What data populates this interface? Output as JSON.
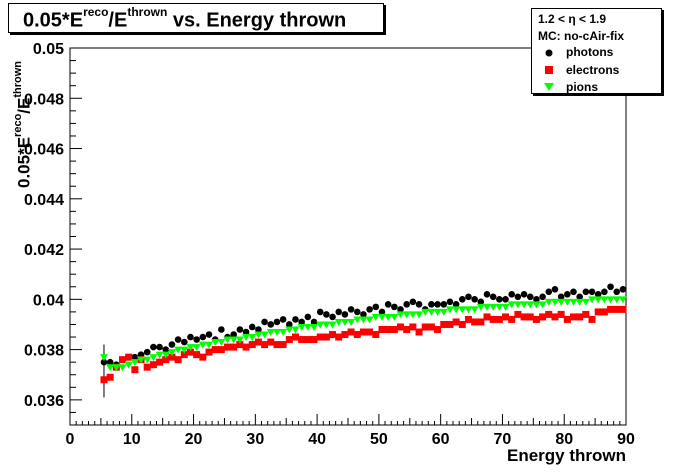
{
  "title": {
    "prefix": "0.05*E",
    "sup1": "reco",
    "mid": "/E",
    "sup2": "thrown",
    "suffix": " vs. Energy thrown"
  },
  "legend": {
    "header1": "1.2 < η < 1.9",
    "header2": "MC: no-cAir-fix",
    "entries": [
      {
        "label": "photons",
        "color": "#000000",
        "marker": "circle"
      },
      {
        "label": "electrons",
        "color": "#ff0000",
        "marker": "square"
      },
      {
        "label": "pions",
        "color": "#00ff00",
        "marker": "triangle-down"
      }
    ]
  },
  "chart_data": {
    "type": "scatter",
    "title": "0.05*E^reco/E^thrown vs. Energy thrown",
    "xlabel": "Energy thrown",
    "ylabel": "0.05*E^reco/E^thrown",
    "xlim": [
      0,
      90
    ],
    "ylim": [
      0.035,
      0.05
    ],
    "xticks": [
      0,
      10,
      20,
      30,
      40,
      50,
      60,
      70,
      80,
      90
    ],
    "yticks": [
      0.036,
      0.038,
      0.04,
      0.042,
      0.044,
      0.046,
      0.048,
      0.05
    ],
    "ytick_labels": [
      "0.036",
      "0.038",
      "0.04",
      "0.042",
      "0.044",
      "0.046",
      "0.048",
      "0.05"
    ],
    "grid": false,
    "legend_position": "top-right",
    "x": [
      5.5,
      6.5,
      7.5,
      8.5,
      9.5,
      10.5,
      11.5,
      12.5,
      13.5,
      14.5,
      15.5,
      16.5,
      17.5,
      18.5,
      19.5,
      20.5,
      21.5,
      22.5,
      23.5,
      24.5,
      25.5,
      26.5,
      27.5,
      28.5,
      29.5,
      30.5,
      31.5,
      32.5,
      33.5,
      34.5,
      35.5,
      36.5,
      37.5,
      38.5,
      39.5,
      40.5,
      41.5,
      42.5,
      43.5,
      44.5,
      45.5,
      46.5,
      47.5,
      48.5,
      49.5,
      50.5,
      51.5,
      52.5,
      53.5,
      54.5,
      55.5,
      56.5,
      57.5,
      58.5,
      59.5,
      60.5,
      61.5,
      62.5,
      63.5,
      64.5,
      65.5,
      66.5,
      67.5,
      68.5,
      69.5,
      70.5,
      71.5,
      72.5,
      73.5,
      74.5,
      75.5,
      76.5,
      77.5,
      78.5,
      79.5,
      80.5,
      81.5,
      82.5,
      83.5,
      84.5,
      85.5,
      86.5,
      87.5,
      88.5,
      89.5
    ],
    "series": [
      {
        "name": "photons",
        "marker": "circle",
        "color": "#000000",
        "values": [
          0.0375,
          0.0375,
          0.0374,
          0.0376,
          0.0377,
          0.0377,
          0.0378,
          0.0379,
          0.0381,
          0.0381,
          0.038,
          0.0382,
          0.0384,
          0.0383,
          0.0385,
          0.0384,
          0.0385,
          0.0386,
          0.0384,
          0.0388,
          0.0385,
          0.0386,
          0.0388,
          0.0387,
          0.0389,
          0.0388,
          0.0391,
          0.039,
          0.0391,
          0.0392,
          0.039,
          0.0392,
          0.0391,
          0.0393,
          0.0391,
          0.0395,
          0.0394,
          0.0393,
          0.0395,
          0.0394,
          0.0396,
          0.0395,
          0.0394,
          0.0396,
          0.0397,
          0.0395,
          0.0398,
          0.0397,
          0.0396,
          0.0398,
          0.0399,
          0.0398,
          0.0396,
          0.0398,
          0.0398,
          0.0398,
          0.0399,
          0.0398,
          0.04,
          0.0401,
          0.04,
          0.0399,
          0.0402,
          0.0401,
          0.04,
          0.04,
          0.0402,
          0.0401,
          0.0402,
          0.0401,
          0.04,
          0.0401,
          0.0403,
          0.0404,
          0.0401,
          0.0402,
          0.0403,
          0.0401,
          0.0403,
          0.0403,
          0.0402,
          0.0403,
          0.0405,
          0.0403,
          0.0404
        ]
      },
      {
        "name": "electrons",
        "marker": "square",
        "color": "#ff0000",
        "values": [
          0.0368,
          0.0369,
          0.0373,
          0.0376,
          0.0377,
          0.0372,
          0.0376,
          0.0373,
          0.0374,
          0.0375,
          0.0376,
          0.0377,
          0.0376,
          0.0378,
          0.0379,
          0.0378,
          0.0377,
          0.0379,
          0.038,
          0.038,
          0.0381,
          0.0381,
          0.0382,
          0.0381,
          0.0382,
          0.0383,
          0.0382,
          0.0383,
          0.0382,
          0.0382,
          0.0384,
          0.0385,
          0.0384,
          0.0384,
          0.0384,
          0.0385,
          0.0385,
          0.0386,
          0.0385,
          0.0386,
          0.0387,
          0.0386,
          0.0387,
          0.0387,
          0.0386,
          0.0388,
          0.0388,
          0.0388,
          0.0389,
          0.0388,
          0.0389,
          0.0387,
          0.0389,
          0.0389,
          0.0388,
          0.039,
          0.039,
          0.0391,
          0.039,
          0.0392,
          0.0391,
          0.0391,
          0.0393,
          0.0392,
          0.0392,
          0.0393,
          0.0392,
          0.0394,
          0.0393,
          0.0393,
          0.0392,
          0.0393,
          0.0394,
          0.0393,
          0.0394,
          0.0392,
          0.0393,
          0.0393,
          0.0394,
          0.0392,
          0.0395,
          0.0395,
          0.0396,
          0.0396,
          0.0396
        ]
      },
      {
        "name": "pions",
        "marker": "triangle-down",
        "color": "#00ff00",
        "values": [
          0.0377,
          0.0373,
          0.0373,
          0.0373,
          0.0374,
          0.0375,
          0.0376,
          0.0376,
          0.0377,
          0.0378,
          0.0378,
          0.0379,
          0.038,
          0.038,
          0.0381,
          0.0381,
          0.0382,
          0.0382,
          0.0383,
          0.0383,
          0.0384,
          0.0384,
          0.0384,
          0.0385,
          0.0385,
          0.0386,
          0.0386,
          0.0387,
          0.0387,
          0.0387,
          0.0388,
          0.0388,
          0.0389,
          0.0389,
          0.0389,
          0.039,
          0.039,
          0.039,
          0.0391,
          0.0391,
          0.0391,
          0.0392,
          0.0392,
          0.0392,
          0.0393,
          0.0393,
          0.0393,
          0.0393,
          0.0394,
          0.0394,
          0.0394,
          0.0394,
          0.0395,
          0.0395,
          0.0395,
          0.0395,
          0.0396,
          0.0396,
          0.0396,
          0.0396,
          0.0396,
          0.0397,
          0.0397,
          0.0397,
          0.0397,
          0.0397,
          0.0398,
          0.0398,
          0.0398,
          0.0398,
          0.0398,
          0.0398,
          0.0399,
          0.0399,
          0.0399,
          0.0399,
          0.0399,
          0.0399,
          0.0399,
          0.04,
          0.04,
          0.04,
          0.04,
          0.04,
          0.04
        ]
      }
    ]
  }
}
